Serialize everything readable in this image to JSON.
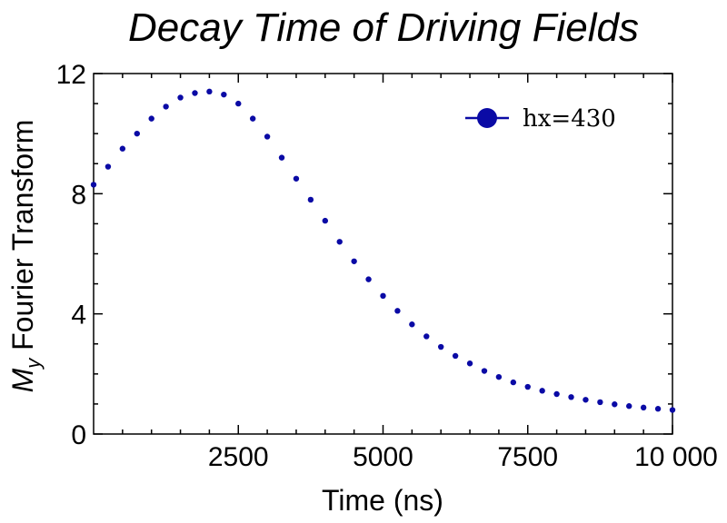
{
  "chart_data": {
    "type": "scatter",
    "title": "Decay Time of Driving Fields",
    "xlabel": "Time (ns)",
    "ylabel_main": "M",
    "ylabel_sub": "y",
    "ylabel_rest": " Fourier Transform",
    "xlim": [
      0,
      10000
    ],
    "ylim": [
      0,
      12
    ],
    "x_ticks": [
      2500,
      5000,
      7500,
      10000
    ],
    "x_tick_labels": [
      "2500",
      "5000",
      "7500",
      "10 000"
    ],
    "y_ticks": [
      0,
      4,
      8,
      12
    ],
    "y_tick_labels": [
      "0",
      "4",
      "8",
      "12"
    ],
    "grid": false,
    "legend_position": "top-right",
    "color": "#0a0aa5",
    "series": [
      {
        "name": "hx=430",
        "x": [
          0,
          250,
          500,
          750,
          1000,
          1250,
          1500,
          1750,
          2000,
          2250,
          2500,
          2750,
          3000,
          3250,
          3500,
          3750,
          4000,
          4250,
          4500,
          4750,
          5000,
          5250,
          5500,
          5750,
          6000,
          6250,
          6500,
          6750,
          7000,
          7250,
          7500,
          7750,
          8000,
          8250,
          8500,
          8750,
          9000,
          9250,
          9500,
          9750,
          10000
        ],
        "y": [
          8.3,
          8.9,
          9.5,
          10.0,
          10.5,
          10.9,
          11.2,
          11.35,
          11.4,
          11.3,
          11.0,
          10.5,
          9.9,
          9.2,
          8.5,
          7.8,
          7.1,
          6.4,
          5.75,
          5.15,
          4.6,
          4.1,
          3.65,
          3.25,
          2.9,
          2.6,
          2.35,
          2.1,
          1.9,
          1.72,
          1.57,
          1.44,
          1.33,
          1.23,
          1.14,
          1.06,
          0.99,
          0.93,
          0.88,
          0.84,
          0.8
        ]
      }
    ]
  }
}
